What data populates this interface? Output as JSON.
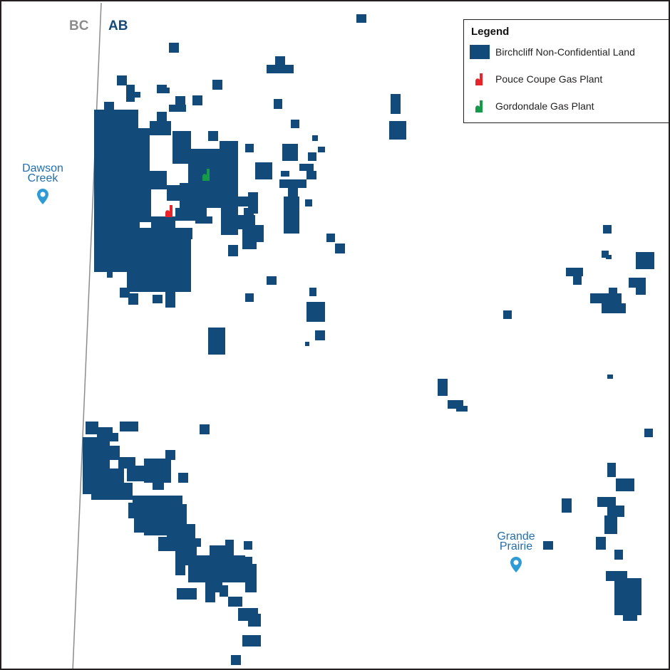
{
  "colors": {
    "land": "#124a7a",
    "pouce_coupe_plant": "#e8232a",
    "gordondale_plant": "#149a48",
    "bc_label": "#8c8c8c",
    "ab_label": "#124a7a",
    "city": "#1f6fb0",
    "pin": "#2e9bd6",
    "border_line": "#8c8c8c"
  },
  "provinces": {
    "left": "BC",
    "right": "AB"
  },
  "cities": [
    {
      "name_line1": "Dawson",
      "name_line2": "Creek",
      "icon": "location-pin-icon"
    },
    {
      "name_line1": "Grande",
      "name_line2": "Prairie",
      "icon": "location-pin-icon"
    }
  ],
  "legend": {
    "title": "Legend",
    "items": [
      {
        "label": "Birchcliff Non-Confidential Land",
        "symbol": "land-square-icon"
      },
      {
        "label": "Pouce Coupe Gas Plant",
        "symbol": "gas-plant-flag-icon"
      },
      {
        "label": "Gordondale Gas Plant",
        "symbol": "gas-plant-flag-icon"
      }
    ]
  }
}
